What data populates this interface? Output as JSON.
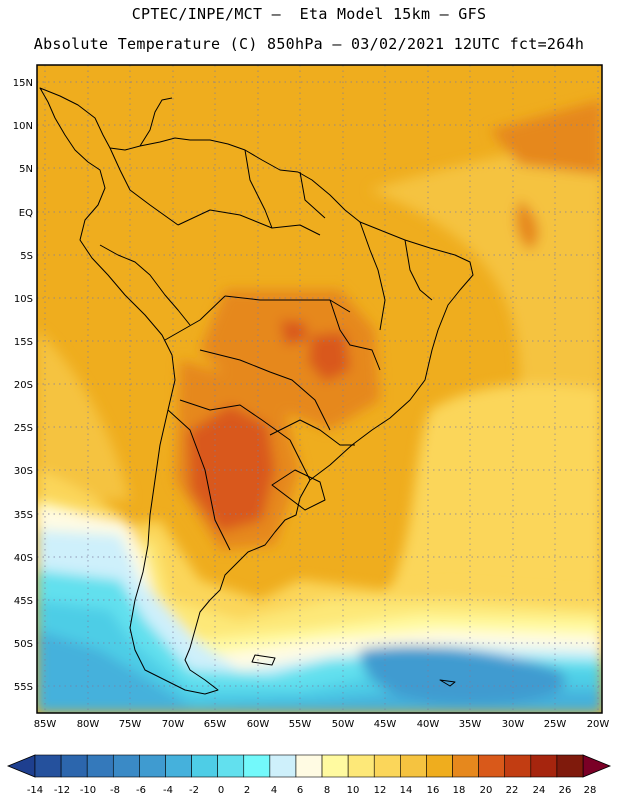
{
  "header": {
    "line1": "CPTEC/INPE/MCT —  Eta Model 15km — GFS",
    "line2": "Absolute Temperature (C) 850hPa — 03/02/2021 12UTC fct=264h"
  },
  "map": {
    "lat_labels": [
      "15N",
      "10N",
      "5N",
      "EQ",
      "5S",
      "10S",
      "15S",
      "20S",
      "25S",
      "30S",
      "35S",
      "40S",
      "45S",
      "50S",
      "55S"
    ],
    "lon_labels": [
      "85W",
      "80W",
      "75W",
      "70W",
      "65W",
      "60W",
      "55W",
      "50W",
      "45W",
      "40W",
      "35W",
      "30W",
      "25W",
      "20W"
    ],
    "field": "temperature-850hPa"
  },
  "colorbar": {
    "labels": [
      "-14",
      "-12",
      "-10",
      "-8",
      "-6",
      "-4",
      "-2",
      "0",
      "2",
      "4",
      "6",
      "8",
      "10",
      "12",
      "14",
      "16",
      "18",
      "20",
      "22",
      "24",
      "26",
      "28"
    ],
    "colors": [
      "#1e3f8f",
      "#25519d",
      "#2c66ad",
      "#3479bb",
      "#3a8ac6",
      "#3f9bd0",
      "#45b1dc",
      "#4ecde6",
      "#62e0ee",
      "#73f9fb",
      "#cef0fb",
      "#fffbe3",
      "#fffaa0",
      "#fde878",
      "#fbd65a",
      "#f5c340",
      "#efad1e",
      "#e6881d",
      "#d9591a",
      "#c23d12",
      "#a6250e",
      "#7f1a0c",
      "#7a0026"
    ]
  }
}
